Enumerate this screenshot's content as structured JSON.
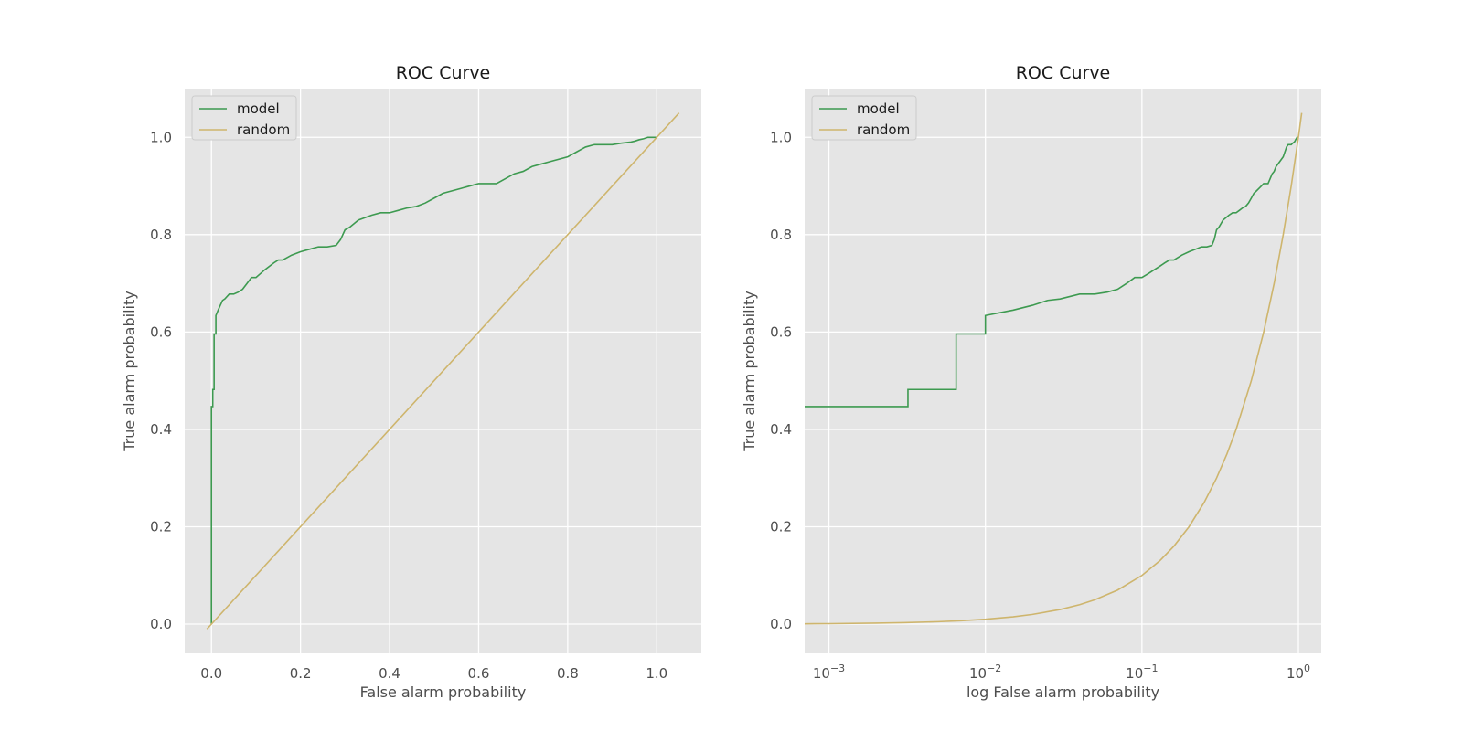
{
  "colors": {
    "model": "#3d9a50",
    "random": "#ceb56d"
  },
  "chart_data": [
    {
      "type": "line",
      "title": "ROC Curve",
      "xlabel": "False alarm probability",
      "ylabel": "True alarm probability",
      "xscale": "linear",
      "xlim": [
        -0.06,
        1.1
      ],
      "ylim": [
        -0.06,
        1.1
      ],
      "xticks": [
        0.0,
        0.2,
        0.4,
        0.6,
        0.8,
        1.0
      ],
      "xtick_labels": [
        "0.0",
        "0.2",
        "0.4",
        "0.6",
        "0.8",
        "1.0"
      ],
      "yticks": [
        0.0,
        0.2,
        0.4,
        0.6,
        0.8,
        1.0
      ],
      "ytick_labels": [
        "0.0",
        "0.2",
        "0.4",
        "0.6",
        "0.8",
        "1.0"
      ],
      "grid": true,
      "legend": "top-left",
      "series": [
        {
          "name": "model",
          "step": true,
          "x": [
            0.0,
            0.0,
            0.003,
            0.003,
            0.006,
            0.006,
            0.01,
            0.01,
            0.015,
            0.02,
            0.025,
            0.03,
            0.04,
            0.05,
            0.06,
            0.07,
            0.08,
            0.09,
            0.1,
            0.11,
            0.12,
            0.13,
            0.14,
            0.15,
            0.16,
            0.18,
            0.2,
            0.22,
            0.24,
            0.26,
            0.28,
            0.29,
            0.3,
            0.31,
            0.33,
            0.36,
            0.38,
            0.4,
            0.42,
            0.44,
            0.46,
            0.48,
            0.5,
            0.52,
            0.54,
            0.56,
            0.58,
            0.6,
            0.64,
            0.66,
            0.68,
            0.7,
            0.72,
            0.74,
            0.76,
            0.8,
            0.81,
            0.82,
            0.83,
            0.84,
            0.86,
            0.9,
            0.92,
            0.94,
            0.95,
            0.96,
            0.97,
            0.98,
            1.0
          ],
          "y": [
            0.0,
            0.447,
            0.447,
            0.482,
            0.482,
            0.596,
            0.596,
            0.634,
            0.645,
            0.655,
            0.665,
            0.668,
            0.678,
            0.678,
            0.682,
            0.688,
            0.7,
            0.712,
            0.712,
            0.72,
            0.728,
            0.735,
            0.742,
            0.748,
            0.748,
            0.758,
            0.765,
            0.77,
            0.775,
            0.775,
            0.778,
            0.79,
            0.81,
            0.815,
            0.83,
            0.84,
            0.845,
            0.845,
            0.85,
            0.855,
            0.858,
            0.865,
            0.875,
            0.885,
            0.89,
            0.895,
            0.9,
            0.905,
            0.905,
            0.915,
            0.925,
            0.93,
            0.94,
            0.945,
            0.95,
            0.96,
            0.965,
            0.97,
            0.975,
            0.98,
            0.985,
            0.985,
            0.988,
            0.99,
            0.992,
            0.995,
            0.997,
            1.0,
            1.0
          ]
        },
        {
          "name": "random",
          "step": false,
          "x": [
            -0.01,
            1.05
          ],
          "y": [
            -0.01,
            1.05
          ]
        }
      ]
    },
    {
      "type": "line",
      "title": "ROC Curve",
      "xlabel": "log False alarm probability",
      "ylabel": "True alarm probability",
      "xscale": "log",
      "xlim": [
        0.0007,
        1.4
      ],
      "ylim": [
        -0.06,
        1.1
      ],
      "xticks": [
        0.001,
        0.01,
        0.1,
        1.0
      ],
      "xtick_labels": [
        {
          "base": "10",
          "exp": "−3"
        },
        {
          "base": "10",
          "exp": "−2"
        },
        {
          "base": "10",
          "exp": "−1"
        },
        {
          "base": "10",
          "exp": "0"
        }
      ],
      "yticks": [
        0.0,
        0.2,
        0.4,
        0.6,
        0.8,
        1.0
      ],
      "ytick_labels": [
        "0.0",
        "0.2",
        "0.4",
        "0.6",
        "0.8",
        "1.0"
      ],
      "grid": true,
      "legend": "top-left",
      "series": [
        {
          "name": "model",
          "step": true,
          "x": [
            0.0007,
            0.0032,
            0.0032,
            0.0065,
            0.0065,
            0.01,
            0.01,
            0.015,
            0.02,
            0.025,
            0.03,
            0.04,
            0.05,
            0.06,
            0.07,
            0.08,
            0.09,
            0.1,
            0.11,
            0.12,
            0.13,
            0.14,
            0.15,
            0.16,
            0.18,
            0.2,
            0.22,
            0.24,
            0.26,
            0.28,
            0.29,
            0.3,
            0.31,
            0.33,
            0.36,
            0.38,
            0.4,
            0.42,
            0.44,
            0.46,
            0.48,
            0.5,
            0.52,
            0.54,
            0.56,
            0.58,
            0.6,
            0.64,
            0.66,
            0.68,
            0.7,
            0.72,
            0.74,
            0.76,
            0.8,
            0.81,
            0.82,
            0.83,
            0.84,
            0.86,
            0.9,
            0.92,
            0.94,
            0.95,
            0.96,
            0.97,
            0.98,
            1.0
          ],
          "y": [
            0.447,
            0.447,
            0.482,
            0.482,
            0.596,
            0.596,
            0.634,
            0.645,
            0.655,
            0.665,
            0.668,
            0.678,
            0.678,
            0.682,
            0.688,
            0.7,
            0.712,
            0.712,
            0.72,
            0.728,
            0.735,
            0.742,
            0.748,
            0.748,
            0.758,
            0.765,
            0.77,
            0.775,
            0.775,
            0.778,
            0.79,
            0.81,
            0.815,
            0.83,
            0.84,
            0.845,
            0.845,
            0.85,
            0.855,
            0.858,
            0.865,
            0.875,
            0.885,
            0.89,
            0.895,
            0.9,
            0.905,
            0.905,
            0.915,
            0.925,
            0.93,
            0.94,
            0.945,
            0.95,
            0.96,
            0.965,
            0.97,
            0.975,
            0.98,
            0.985,
            0.985,
            0.988,
            0.99,
            0.992,
            0.995,
            0.997,
            1.0,
            1.0
          ]
        },
        {
          "name": "random",
          "step": false,
          "x": [
            0.0007,
            0.001,
            0.002,
            0.003,
            0.005,
            0.007,
            0.01,
            0.015,
            0.02,
            0.03,
            0.04,
            0.05,
            0.07,
            0.1,
            0.13,
            0.16,
            0.2,
            0.25,
            0.3,
            0.35,
            0.4,
            0.5,
            0.6,
            0.7,
            0.8,
            0.9,
            1.0,
            1.05
          ],
          "y": [
            0.0007,
            0.001,
            0.002,
            0.003,
            0.005,
            0.007,
            0.01,
            0.015,
            0.02,
            0.03,
            0.04,
            0.05,
            0.07,
            0.1,
            0.13,
            0.16,
            0.2,
            0.25,
            0.3,
            0.35,
            0.4,
            0.5,
            0.6,
            0.7,
            0.8,
            0.9,
            1.0,
            1.05
          ]
        }
      ]
    }
  ]
}
